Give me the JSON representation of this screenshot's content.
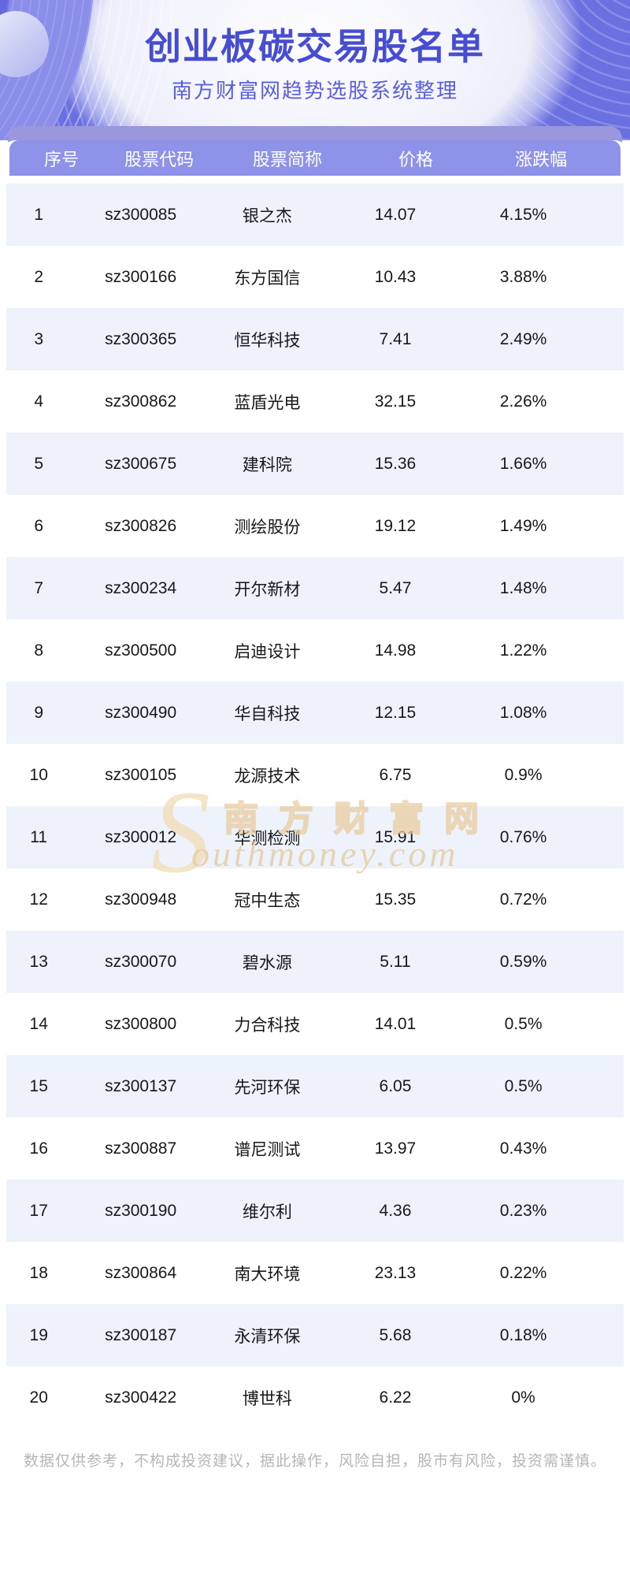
{
  "header": {
    "title": "创业板碳交易股名单",
    "subtitle": "南方财富网趋势选股系统整理"
  },
  "table": {
    "columns": [
      "序号",
      "股票代码",
      "股票简称",
      "价格",
      "涨跌幅"
    ],
    "rows": [
      {
        "index": "1",
        "code": "sz300085",
        "name": "银之杰",
        "price": "14.07",
        "change": "4.15%"
      },
      {
        "index": "2",
        "code": "sz300166",
        "name": "东方国信",
        "price": "10.43",
        "change": "3.88%"
      },
      {
        "index": "3",
        "code": "sz300365",
        "name": "恒华科技",
        "price": "7.41",
        "change": "2.49%"
      },
      {
        "index": "4",
        "code": "sz300862",
        "name": "蓝盾光电",
        "price": "32.15",
        "change": "2.26%"
      },
      {
        "index": "5",
        "code": "sz300675",
        "name": "建科院",
        "price": "15.36",
        "change": "1.66%"
      },
      {
        "index": "6",
        "code": "sz300826",
        "name": "测绘股份",
        "price": "19.12",
        "change": "1.49%"
      },
      {
        "index": "7",
        "code": "sz300234",
        "name": "开尔新材",
        "price": "5.47",
        "change": "1.48%"
      },
      {
        "index": "8",
        "code": "sz300500",
        "name": "启迪设计",
        "price": "14.98",
        "change": "1.22%"
      },
      {
        "index": "9",
        "code": "sz300490",
        "name": "华自科技",
        "price": "12.15",
        "change": "1.08%"
      },
      {
        "index": "10",
        "code": "sz300105",
        "name": "龙源技术",
        "price": "6.75",
        "change": "0.9%"
      },
      {
        "index": "11",
        "code": "sz300012",
        "name": "华测检测",
        "price": "15.91",
        "change": "0.76%"
      },
      {
        "index": "12",
        "code": "sz300948",
        "name": "冠中生态",
        "price": "15.35",
        "change": "0.72%"
      },
      {
        "index": "13",
        "code": "sz300070",
        "name": "碧水源",
        "price": "5.11",
        "change": "0.59%"
      },
      {
        "index": "14",
        "code": "sz300800",
        "name": "力合科技",
        "price": "14.01",
        "change": "0.5%"
      },
      {
        "index": "15",
        "code": "sz300137",
        "name": "先河环保",
        "price": "6.05",
        "change": "0.5%"
      },
      {
        "index": "16",
        "code": "sz300887",
        "name": "谱尼测试",
        "price": "13.97",
        "change": "0.43%"
      },
      {
        "index": "17",
        "code": "sz300190",
        "name": "维尔利",
        "price": "4.36",
        "change": "0.23%"
      },
      {
        "index": "18",
        "code": "sz300864",
        "name": "南大环境",
        "price": "23.13",
        "change": "0.22%"
      },
      {
        "index": "19",
        "code": "sz300187",
        "name": "永清环保",
        "price": "5.68",
        "change": "0.18%"
      },
      {
        "index": "20",
        "code": "sz300422",
        "name": "博世科",
        "price": "6.22",
        "change": "0%"
      }
    ]
  },
  "watermark": {
    "initial": "S",
    "brand_cn": "南方财富网",
    "brand_en": "outhmoney.com"
  },
  "footer": {
    "disclaimer": "数据仅供参考，不构成投资建议，据此操作，风险自担，股市有风险，投资需谨慎。"
  },
  "colors": {
    "banner_base": "#6b70e1",
    "header_band": "#8e92e8",
    "band_shadow": "#9a97dd",
    "row_alt": "#eef3fb",
    "title_text": "#474dd2",
    "subtitle_text": "#5a5fd9",
    "watermark_tan": "#e8cb9d",
    "disclaimer_gray": "#b6b6b9"
  }
}
